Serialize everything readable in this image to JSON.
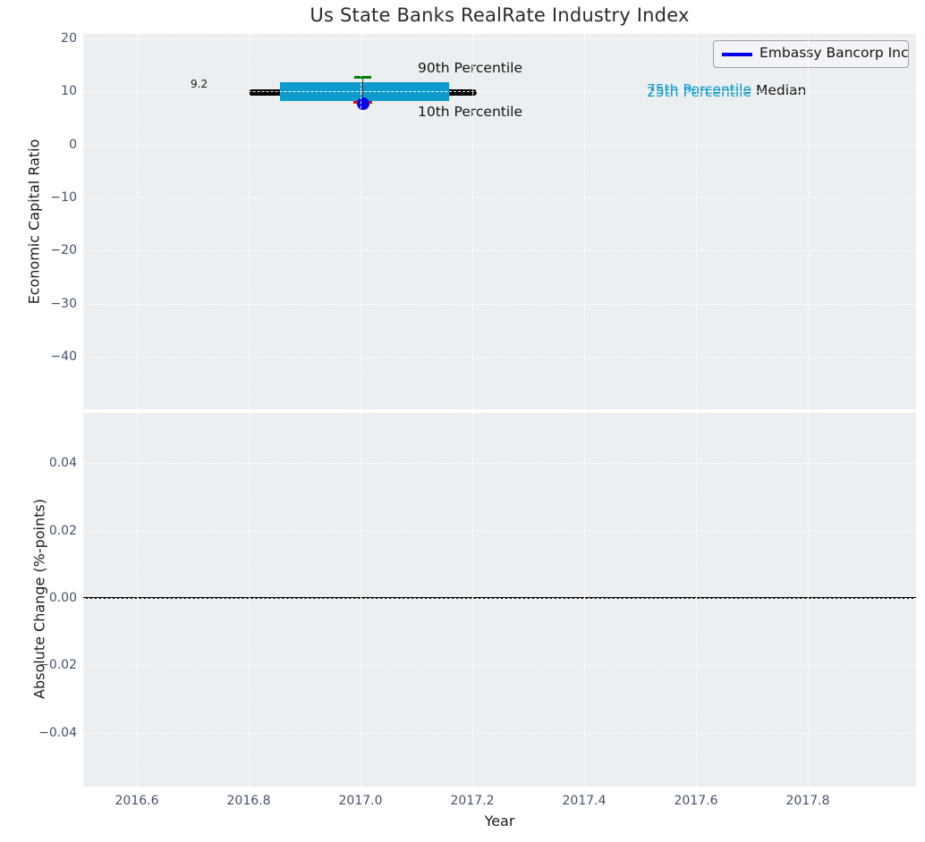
{
  "title": "Us State Banks RealRate Industry Index",
  "legend": {
    "label": "Embassy Bancorp Inc"
  },
  "annotations": {
    "p90_label": "90th Percentile",
    "p10_label": "10th Percentile",
    "p75_label": "75th Percentile",
    "p25_label": "25th Percentile",
    "median_label": "Median",
    "median_value": "9.2"
  },
  "axes": {
    "top": {
      "ylabel": "Economic Capital Ratio",
      "yticks": [
        "20",
        "10",
        "0",
        "−10",
        "−20",
        "−30",
        "−40"
      ]
    },
    "bottom": {
      "ylabel": "Absolute Change (%-points)",
      "yticks": [
        "0.04",
        "0.02",
        "0.00",
        "−0.02",
        "−0.04"
      ]
    },
    "x": {
      "label": "Year",
      "ticks": [
        "2016.6",
        "2016.8",
        "2017.0",
        "2017.2",
        "2017.4",
        "2017.6",
        "2017.8"
      ]
    }
  },
  "colors": {
    "plot_background": "#ebeff1",
    "grid": "#ffffff",
    "iqr_box": "#0d9bce",
    "median_line": "#000000",
    "p90_cap": "#008000",
    "p10_cap": "#ff0000",
    "company_marker": "#0202e8",
    "legend_line": "#0000f0",
    "tick_label": "#44516b",
    "text": "#1a1a1a"
  },
  "chart_data": [
    {
      "type": "boxplot",
      "title": "Us State Banks RealRate Industry Index",
      "xlabel": "Year",
      "ylabel": "Economic Capital Ratio",
      "xlim": [
        2016.5,
        2017.99
      ],
      "ylim": [
        -51,
        21
      ],
      "yticks": [
        20,
        10,
        0,
        -10,
        -20,
        -30,
        -40
      ],
      "xticks": [
        2016.6,
        2016.8,
        2017.0,
        2017.2,
        2017.4,
        2017.6,
        2017.8
      ],
      "grid": true,
      "legend_position": "upper right",
      "box": {
        "x": 2017.0,
        "median": 9.2,
        "p25": 8.2,
        "p75": 11.7,
        "p10": 8.0,
        "p90": 12.7,
        "box_x_span": [
          2016.85,
          2017.15
        ],
        "median_x_span": [
          2016.8,
          2017.2
        ]
      },
      "series": [
        {
          "name": "Embassy Bancorp Inc",
          "type": "scatter",
          "x": [
            2017.0
          ],
          "values": [
            7.5
          ],
          "color": "#0202e8",
          "marker": "circle"
        }
      ]
    },
    {
      "type": "line",
      "xlabel": "Year",
      "ylabel": "Absolute Change (%-points)",
      "xlim": [
        2016.5,
        2017.99
      ],
      "ylim": [
        -0.055,
        0.055
      ],
      "yticks": [
        0.04,
        0.02,
        0.0,
        -0.02,
        -0.04
      ],
      "xticks": [
        2016.6,
        2016.8,
        2017.0,
        2017.2,
        2017.4,
        2017.6,
        2017.8
      ],
      "grid": true,
      "zero_line": 0.0,
      "series": [
        {
          "name": "Embassy Bancorp Inc",
          "x": [
            2017.0
          ],
          "values": [
            0.0
          ]
        }
      ]
    }
  ]
}
